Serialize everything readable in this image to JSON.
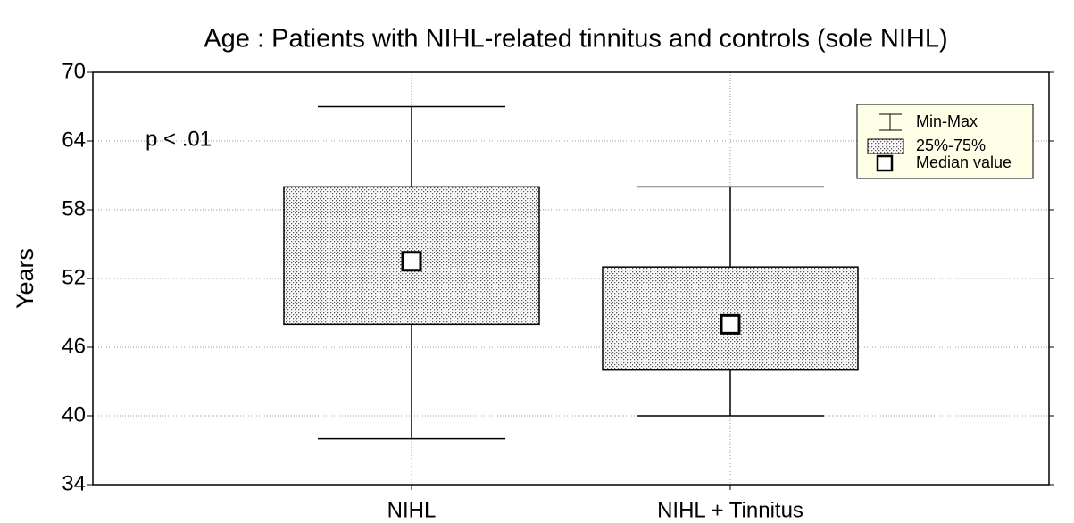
{
  "chart_data": {
    "type": "box",
    "title": "Age : Patients with NIHL-related tinnitus and controls (sole NIHL)",
    "y_label": "Years",
    "annotation": "p < .01",
    "categories": [
      "NIHL",
      "NIHL + Tinnitus"
    ],
    "min": [
      38,
      40
    ],
    "q1": [
      48,
      44
    ],
    "median": [
      53.5,
      48
    ],
    "q3": [
      60,
      53
    ],
    "max": [
      67,
      60
    ],
    "ylim": [
      34,
      70
    ],
    "yticks": [
      34,
      40,
      46,
      52,
      58,
      64,
      70
    ],
    "grid": true,
    "legend": {
      "position": "upper right",
      "entries": [
        "Min-Max",
        "25%-75%",
        "Median value"
      ]
    }
  }
}
